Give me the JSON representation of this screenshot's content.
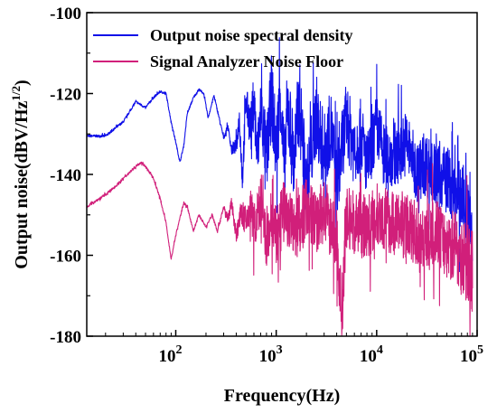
{
  "chart_data": {
    "type": "line",
    "xlabel": "Frequency(Hz)",
    "ylabel": "Output noise(dBV/Hz",
    "ylabel_sup": "1/2",
    "ylabel_close": ")",
    "xscale": "log",
    "xlim": [
      13,
      100000
    ],
    "ylim": [
      -180,
      -100
    ],
    "grid": false,
    "legend": "top-left",
    "x_ticks": [
      {
        "value": 100,
        "base": "10",
        "exp": "2"
      },
      {
        "value": 1000,
        "base": "10",
        "exp": "3"
      },
      {
        "value": 10000,
        "base": "10",
        "exp": "4"
      },
      {
        "value": 100000,
        "base": "10",
        "exp": "5"
      }
    ],
    "y_ticks": [
      {
        "value": -100,
        "label": "-100"
      },
      {
        "value": -120,
        "label": "-120"
      },
      {
        "value": -140,
        "label": "-140"
      },
      {
        "value": -160,
        "label": "-160"
      },
      {
        "value": -180,
        "label": "-180"
      }
    ],
    "series": [
      {
        "name": "Output noise spectral density",
        "color": "#1010e8",
        "x": [
          13,
          20,
          30,
          40,
          50,
          60,
          70,
          80,
          90,
          100,
          110,
          120,
          130,
          150,
          170,
          190,
          210,
          240,
          270,
          300,
          330,
          360,
          400,
          430,
          460,
          500,
          560,
          600,
          650,
          700,
          800,
          900,
          1000,
          1100,
          1200,
          1300,
          1500,
          1700,
          2000,
          2500,
          3000,
          3500,
          4000,
          5000,
          6000,
          7000,
          8000,
          10000,
          12000,
          15000,
          20000,
          25000,
          30000,
          40000,
          50000,
          60000,
          70000,
          80000,
          90000
        ],
        "y": [
          -130.5,
          -130.5,
          -127,
          -122,
          -123.5,
          -121,
          -119.5,
          -120,
          -127,
          -132,
          -137,
          -133,
          -125,
          -121,
          -119,
          -120,
          -126,
          -120.5,
          -126,
          -131,
          -128,
          -134,
          -133,
          -126,
          -141,
          -122,
          -129,
          -121,
          -137,
          -123,
          -136,
          -120,
          -135,
          -119,
          -140,
          -123,
          -137,
          -122,
          -144,
          -125,
          -135,
          -128,
          -142,
          -126,
          -134,
          -130,
          -138,
          -128,
          -136,
          -135,
          -132,
          -140,
          -137,
          -141,
          -140,
          -146,
          -145,
          -150,
          -156
        ],
        "amp": [
          0.3,
          0.3,
          0.3,
          0.3,
          0.3,
          0.3,
          0.3,
          0.3,
          0.3,
          0.3,
          0.3,
          0.3,
          0.3,
          0.3,
          0.3,
          0.3,
          0.3,
          0.3,
          0.4,
          0.5,
          0.6,
          1,
          2,
          3,
          4,
          4,
          6,
          7,
          8,
          8,
          9,
          10,
          10,
          10,
          11,
          11,
          11,
          11,
          10,
          10,
          10,
          9,
          9,
          9,
          9,
          9,
          8,
          8,
          8,
          8,
          8,
          8,
          8,
          8,
          8,
          8,
          9,
          9,
          10
        ]
      },
      {
        "name": "Signal Analyzer Noise Floor",
        "color": "#d11f7a",
        "x": [
          13,
          20,
          25,
          30,
          40,
          45,
          50,
          60,
          70,
          80,
          90,
          100,
          120,
          130,
          150,
          170,
          200,
          230,
          260,
          300,
          330,
          360,
          400,
          450,
          500,
          560,
          600,
          700,
          800,
          900,
          1000,
          1200,
          1500,
          2000,
          2500,
          3000,
          4000,
          4500,
          5000,
          6000,
          8000,
          10000,
          15000,
          20000,
          30000,
          40000,
          50000,
          60000,
          70000,
          80000,
          90000
        ],
        "y": [
          -148,
          -145,
          -143,
          -141,
          -138,
          -137,
          -138,
          -141,
          -146,
          -152,
          -161,
          -155,
          -147,
          -148,
          -154,
          -150,
          -153,
          -150,
          -154,
          -148,
          -151,
          -147,
          -155,
          -149,
          -152,
          -148,
          -153,
          -147,
          -158,
          -150,
          -156,
          -149,
          -154,
          -148,
          -152,
          -149,
          -156,
          -175,
          -151,
          -152,
          -153,
          -150,
          -152,
          -153,
          -156,
          -154,
          -158,
          -157,
          -160,
          -162,
          -165
        ],
        "amp": [
          0.3,
          0.3,
          0.3,
          0.3,
          0.3,
          0.3,
          0.3,
          0.3,
          0.3,
          0.3,
          0.3,
          0.3,
          0.3,
          0.3,
          0.3,
          0.3,
          0.3,
          0.4,
          0.5,
          0.6,
          1,
          1.5,
          2,
          3,
          4,
          5,
          6,
          6,
          7,
          7,
          8,
          8,
          8,
          8,
          8,
          8,
          8,
          9,
          8,
          8,
          8,
          8,
          8,
          8,
          8,
          8,
          8,
          9,
          10,
          10,
          11
        ]
      }
    ]
  }
}
